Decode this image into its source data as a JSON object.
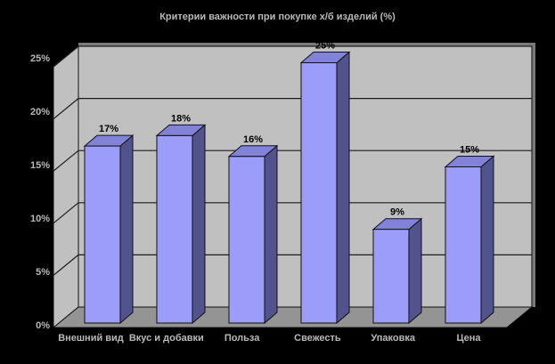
{
  "chart_data": {
    "type": "bar",
    "variant": "3d-column",
    "title": "Критерии важности при покупке х/б изделий (%)",
    "categories": [
      "Внешний вид",
      "Вкус и добавки",
      "Польза",
      "Свежесть",
      "Упаковка",
      "Цена"
    ],
    "values": [
      17,
      18,
      16,
      25,
      9,
      15
    ],
    "value_labels": [
      "17%",
      "18%",
      "16%",
      "25%",
      "9%",
      "15%"
    ],
    "xlabel": "",
    "ylabel": "",
    "ylim": [
      0,
      25
    ],
    "y_ticks": [
      {
        "value": 0,
        "label": "0%"
      },
      {
        "value": 5,
        "label": "5%"
      },
      {
        "value": 10,
        "label": "10%"
      },
      {
        "value": 15,
        "label": "15%"
      },
      {
        "value": 20,
        "label": "20%"
      },
      {
        "value": 25,
        "label": "25%"
      }
    ],
    "grid": true,
    "legend": "none",
    "colors": {
      "background": "#000000",
      "wall": "#c0c0c0",
      "wall_edge": "#7a7a7a",
      "floor": "#949494",
      "gridline": "#1c1c1c",
      "outline": "#111111",
      "bar_front": "#9c9cfa",
      "bar_top": "#8282d8",
      "bar_side": "#52528c",
      "data_label": "#000000",
      "outside_text": "#b9b9b9"
    }
  }
}
